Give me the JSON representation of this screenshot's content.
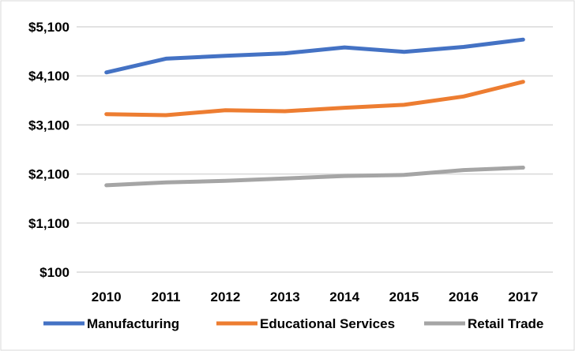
{
  "chart_data": {
    "type": "line",
    "title": "",
    "xlabel": "",
    "ylabel": "",
    "categories": [
      "2010",
      "2011",
      "2012",
      "2013",
      "2014",
      "2015",
      "2016",
      "2017"
    ],
    "y_ticks": [
      "$100",
      "$1,100",
      "$2,100",
      "$3,100",
      "$4,100",
      "$5,100"
    ],
    "y_tick_values": [
      100,
      1100,
      2100,
      3100,
      4100,
      5100
    ],
    "ylim": [
      100,
      5100
    ],
    "grid": "horizontal",
    "legend_position": "bottom",
    "series": [
      {
        "name": "Manufacturing",
        "color": "#4472C4",
        "values": [
          4170,
          4450,
          4510,
          4560,
          4680,
          4590,
          4690,
          4840
        ]
      },
      {
        "name": "Educational Services",
        "color": "#ED7D31",
        "values": [
          3320,
          3300,
          3400,
          3380,
          3450,
          3510,
          3680,
          3980
        ]
      },
      {
        "name": "Retail Trade",
        "color": "#A5A5A5",
        "values": [
          1870,
          1930,
          1960,
          2010,
          2060,
          2080,
          2180,
          2230
        ]
      }
    ]
  }
}
